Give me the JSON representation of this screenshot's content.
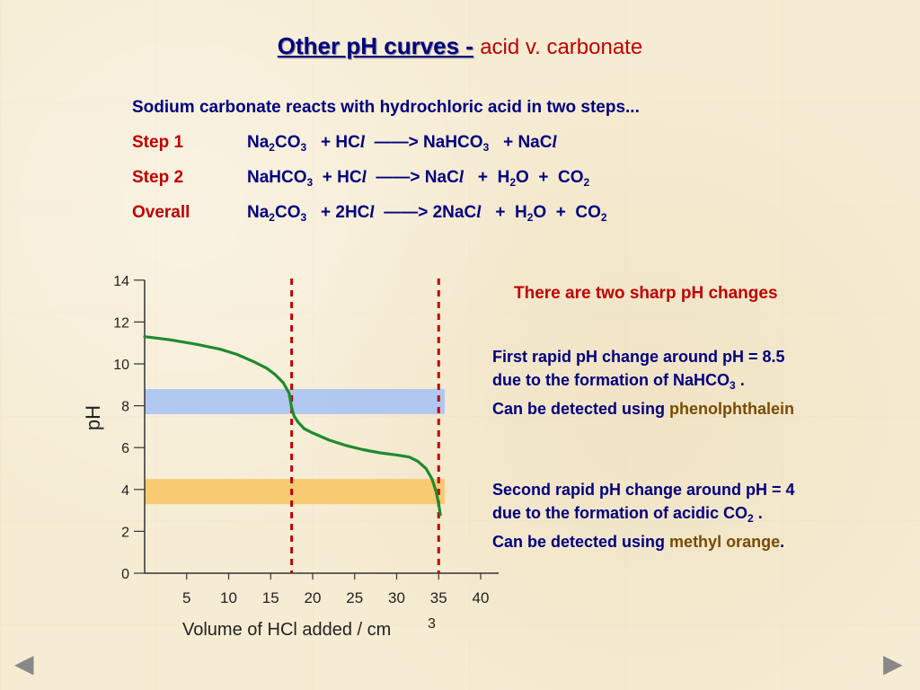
{
  "title": {
    "main": "Other pH curves -",
    "sub": "acid v. carbonate"
  },
  "intro": "Sodium carbonate reacts with hydrochloric acid in two steps...",
  "steps": [
    {
      "label": "Step 1",
      "equation": "Na₂CO₃ + HCl ——> NaHCO₃ + NaCl"
    },
    {
      "label": "Step 2",
      "equation": "NaHCO₃ + HCl ——> NaCl + H₂O + CO₂"
    },
    {
      "label": "Overall",
      "equation": "Na₂CO₃ + 2HCl ——> 2NaCl + H₂O + CO₂"
    }
  ],
  "notes": {
    "headline": "There are two sharp pH changes",
    "first_line1": "First rapid pH change around pH = 8.5",
    "first_line2": "due to the formation of NaHCO",
    "first_line2_sub": "3",
    "first_line2_end": " .",
    "first_line3": "Can be detected using ",
    "first_indicator": "phenolphthalein",
    "second_line1": "Second rapid pH change around pH = 4",
    "second_line2": "due to the formation of acidic CO",
    "second_line2_sub": "2",
    "second_line2_end": " .",
    "second_line3": "Can be detected using ",
    "second_indicator": "methyl orange",
    "second_end": "."
  },
  "nav": {
    "prev_icon": "◀",
    "next_icon": "▶"
  },
  "chart_data": {
    "type": "line",
    "xlabel": "Volume of HCl added / cm",
    "xlabel_sup": "3",
    "ylabel": "pH",
    "xlim": [
      0,
      42
    ],
    "ylim": [
      0,
      14
    ],
    "xticks": [
      5,
      10,
      15,
      20,
      25,
      30,
      35,
      40
    ],
    "yticks": [
      0,
      2,
      4,
      6,
      8,
      10,
      12,
      14
    ],
    "series": [
      {
        "color": "#1f8a2e",
        "x": [
          0,
          3,
          6,
          9,
          11,
          13,
          14.5,
          15.5,
          16.5,
          17.2,
          17.5,
          17.8,
          18.3,
          19,
          20,
          22,
          24,
          26,
          28,
          30,
          31.5,
          32.5,
          33.5,
          34.2,
          34.7,
          35,
          35.2
        ],
        "y": [
          11.3,
          11.15,
          10.95,
          10.7,
          10.45,
          10.1,
          9.8,
          9.5,
          9.1,
          8.6,
          7.9,
          7.5,
          7.2,
          6.9,
          6.7,
          6.35,
          6.1,
          5.9,
          5.75,
          5.65,
          5.55,
          5.35,
          5.0,
          4.5,
          3.9,
          3.3,
          2.8
        ]
      }
    ],
    "bands": [
      {
        "ymin": 7.6,
        "ymax": 8.8,
        "color": "#a9c3f3"
      },
      {
        "ymin": 3.3,
        "ymax": 4.5,
        "color": "#f8c767"
      }
    ],
    "equivalence_lines": {
      "x": [
        17.5,
        35
      ],
      "color": "#c00000"
    }
  }
}
